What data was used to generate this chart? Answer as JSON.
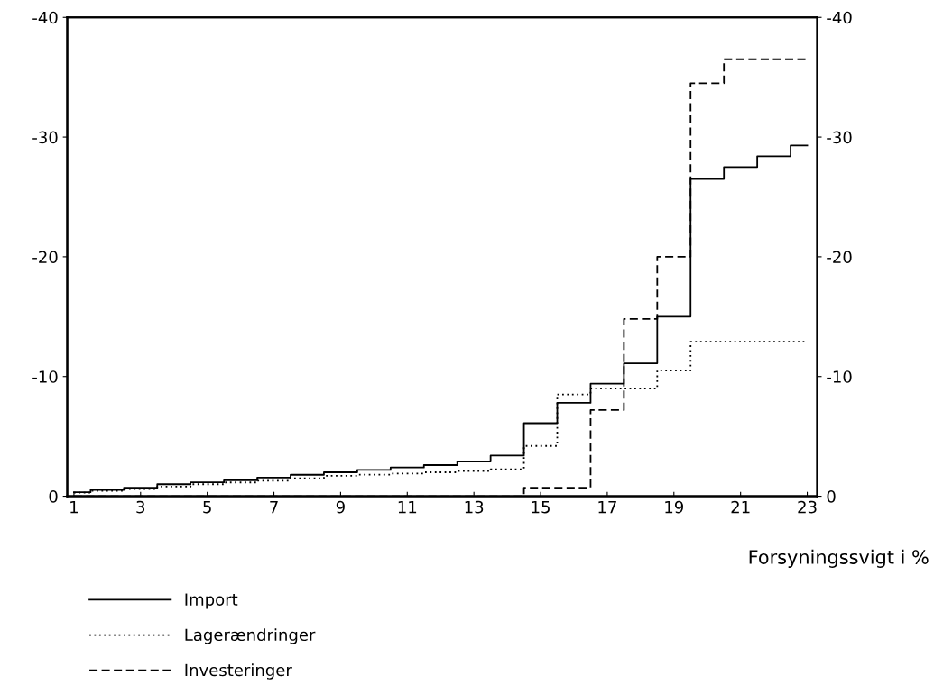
{
  "chart_data": {
    "type": "step",
    "xlabel": "Forsyningssvigt i %",
    "x": [
      1,
      2,
      3,
      4,
      5,
      6,
      7,
      8,
      9,
      10,
      11,
      12,
      13,
      14,
      15,
      16,
      17,
      18,
      19,
      20,
      21,
      22,
      23
    ],
    "series": [
      {
        "name": "Import",
        "color": "#000000",
        "line_style": "solid",
        "values": [
          -0.33,
          -0.53,
          -0.7,
          -1.0,
          -1.16,
          -1.33,
          -1.56,
          -1.79,
          -2.0,
          -2.19,
          -2.4,
          -2.6,
          -2.9,
          -3.4,
          -6.1,
          -7.8,
          -9.4,
          -11.1,
          -15.0,
          -26.5,
          -27.5,
          -28.4,
          -29.3
        ]
      },
      {
        "name": "Lagerændringer",
        "color": "#000000",
        "line_style": "dotted",
        "values": [
          -0.3,
          -0.45,
          -0.6,
          -0.8,
          -1.0,
          -1.15,
          -1.3,
          -1.5,
          -1.7,
          -1.8,
          -1.9,
          -2.0,
          -2.1,
          -2.25,
          -4.2,
          -8.5,
          -9.0,
          -9.0,
          -10.5,
          -12.9,
          -12.9,
          -12.9,
          -12.9
        ]
      },
      {
        "name": "Investeringer",
        "color": "#000000",
        "line_style": "dashed",
        "values": [
          0,
          0,
          0,
          0,
          0,
          0,
          0,
          0,
          0,
          0,
          0,
          0,
          0,
          0,
          -0.7,
          -0.7,
          -7.2,
          -14.8,
          -20.0,
          -34.5,
          -36.5,
          -36.5,
          -36.5
        ]
      }
    ],
    "xlim": [
      0.8,
      23.3
    ],
    "xticks": [
      1,
      3,
      5,
      7,
      9,
      11,
      13,
      15,
      17,
      19,
      21,
      23
    ],
    "ylim": [
      0,
      -40
    ],
    "yticks": [
      0,
      -10,
      -20,
      -30,
      -40
    ],
    "y2lim": [
      0,
      -40
    ],
    "y2ticks": [
      0,
      -10,
      -20,
      -30,
      -40
    ],
    "marker": "none",
    "grid": false,
    "legend": "bottom left"
  }
}
